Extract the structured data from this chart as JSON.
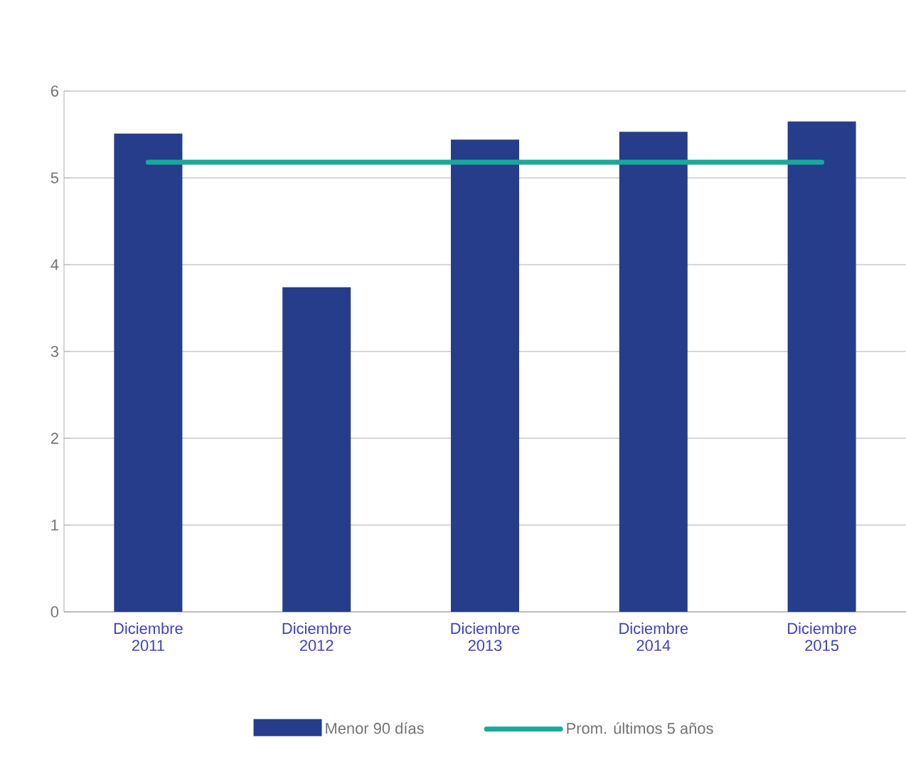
{
  "chart_data": {
    "type": "bar",
    "categories": [
      "Diciembre 2011",
      "Diciembre 2012",
      "Diciembre 2013",
      "Diciembre 2014",
      "Diciembre 2015"
    ],
    "series": [
      {
        "name": "Menor 90 días",
        "color": "#253d8b",
        "values": [
          5.51,
          3.74,
          5.44,
          5.53,
          5.65
        ]
      },
      {
        "name": "Prom. últimos 5 años",
        "type": "line",
        "color": "#1aa89b",
        "values": [
          5.18,
          5.18,
          5.18,
          5.18,
          5.18
        ]
      }
    ],
    "ylim": [
      0,
      6
    ],
    "yticks": [
      0,
      1,
      2,
      3,
      4,
      5,
      6
    ],
    "grid": "y",
    "legend": "bottom",
    "marker": "none"
  }
}
